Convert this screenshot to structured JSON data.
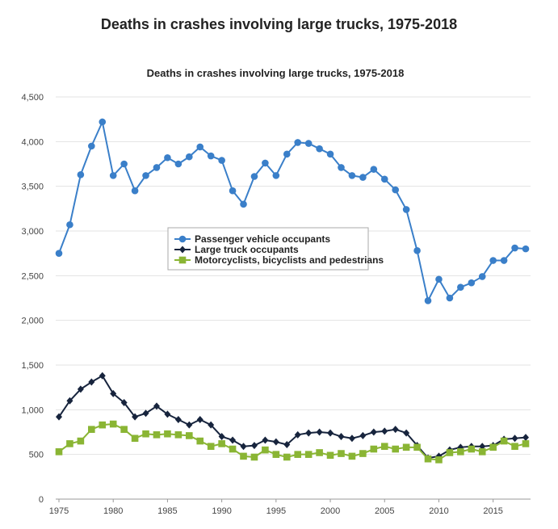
{
  "page": {
    "title": "Deaths in crashes involving large trucks, 1975-2018"
  },
  "chart_data": {
    "type": "line",
    "title": "Deaths in crashes involving large trucks, 1975-2018",
    "xlabel": "",
    "ylabel": "",
    "x": [
      1975,
      1976,
      1977,
      1978,
      1979,
      1980,
      1981,
      1982,
      1983,
      1984,
      1985,
      1986,
      1987,
      1988,
      1989,
      1990,
      1991,
      1992,
      1993,
      1994,
      1995,
      1996,
      1997,
      1998,
      1999,
      2000,
      2001,
      2002,
      2003,
      2004,
      2005,
      2006,
      2007,
      2008,
      2009,
      2010,
      2011,
      2012,
      2013,
      2014,
      2015,
      2016,
      2017,
      2018
    ],
    "xlim": [
      1975,
      2018
    ],
    "ylim": [
      0,
      4500
    ],
    "x_ticks": [
      1975,
      1980,
      1985,
      1990,
      1995,
      2000,
      2005,
      2010,
      2015
    ],
    "y_ticks": [
      0,
      500,
      1000,
      1500,
      2000,
      2500,
      3000,
      3500,
      4000,
      4500
    ],
    "x_tick_labels": [
      "1975",
      "1980",
      "1985",
      "1990",
      "1995",
      "2000",
      "2005",
      "2010",
      "2015"
    ],
    "y_tick_labels": [
      "0",
      "500",
      "1,000",
      "1,500",
      "2,000",
      "2,500",
      "3,000",
      "3,500",
      "4,000",
      "4,500"
    ],
    "grid": true,
    "legend_position": "center",
    "series": [
      {
        "name": "Passenger vehicle occupants",
        "color": "#3a7fc9",
        "marker": "circle",
        "values": [
          2750,
          3070,
          3630,
          3950,
          4220,
          3620,
          3750,
          3450,
          3620,
          3710,
          3820,
          3750,
          3830,
          3940,
          3840,
          3790,
          3450,
          3300,
          3610,
          3760,
          3620,
          3860,
          3990,
          3980,
          3920,
          3860,
          3710,
          3620,
          3600,
          3690,
          3580,
          3460,
          3240,
          2780,
          2220,
          2460,
          2250,
          2370,
          2420,
          2490,
          2670,
          2670,
          2810,
          2800
        ]
      },
      {
        "name": "Large truck occupants",
        "color": "#17243d",
        "marker": "diamond",
        "values": [
          920,
          1100,
          1230,
          1310,
          1380,
          1180,
          1080,
          920,
          960,
          1040,
          950,
          890,
          830,
          890,
          830,
          700,
          660,
          590,
          600,
          660,
          640,
          610,
          720,
          740,
          750,
          740,
          700,
          680,
          710,
          750,
          760,
          780,
          740,
          600,
          460,
          480,
          550,
          580,
          590,
          590,
          600,
          670,
          680,
          690
        ]
      },
      {
        "name": "Motorcyclists, bicyclists and pedestrians",
        "color": "#8ab534",
        "marker": "square",
        "values": [
          530,
          620,
          650,
          780,
          830,
          840,
          780,
          680,
          730,
          720,
          730,
          720,
          710,
          650,
          590,
          620,
          560,
          480,
          470,
          550,
          500,
          470,
          500,
          500,
          520,
          490,
          510,
          480,
          510,
          560,
          590,
          560,
          580,
          580,
          450,
          440,
          520,
          530,
          560,
          530,
          580,
          650,
          590,
          620
        ]
      }
    ]
  }
}
